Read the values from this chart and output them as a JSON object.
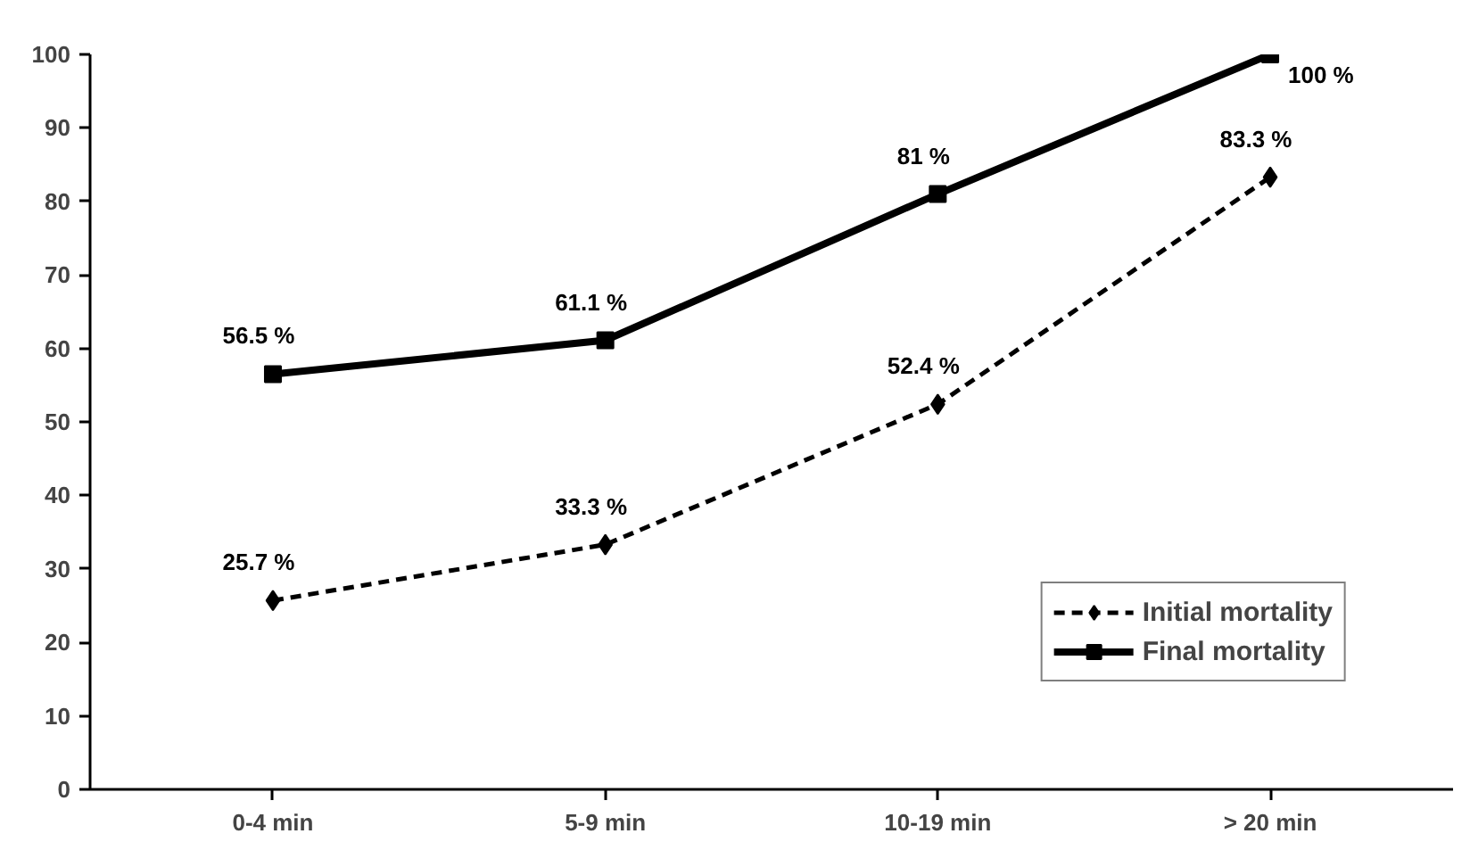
{
  "chart_data": {
    "type": "line",
    "categories": [
      "0-4 min",
      "5-9 min",
      "10-19 min",
      "> 20 min"
    ],
    "series": [
      {
        "name": "Initial mortality",
        "color": "#000000",
        "values": [
          25.7,
          33.3,
          52.4,
          83.3
        ],
        "marker": "diamond",
        "line_style": "dashed",
        "value_labels": [
          "25.7 %",
          "33.3 %",
          "52.4 %",
          "83.3 %"
        ]
      },
      {
        "name": "Final mortality",
        "color": "#000000",
        "values": [
          56.5,
          61.1,
          81,
          100
        ],
        "marker": "square",
        "line_style": "solid",
        "value_labels": [
          "56.5 %",
          "61.1 %",
          "81 %",
          "100 %"
        ]
      }
    ],
    "ylim": [
      0,
      100
    ],
    "yticks": [
      0,
      10,
      20,
      30,
      40,
      50,
      60,
      70,
      80,
      90,
      100
    ],
    "grid": false,
    "legend": "bottom right"
  }
}
